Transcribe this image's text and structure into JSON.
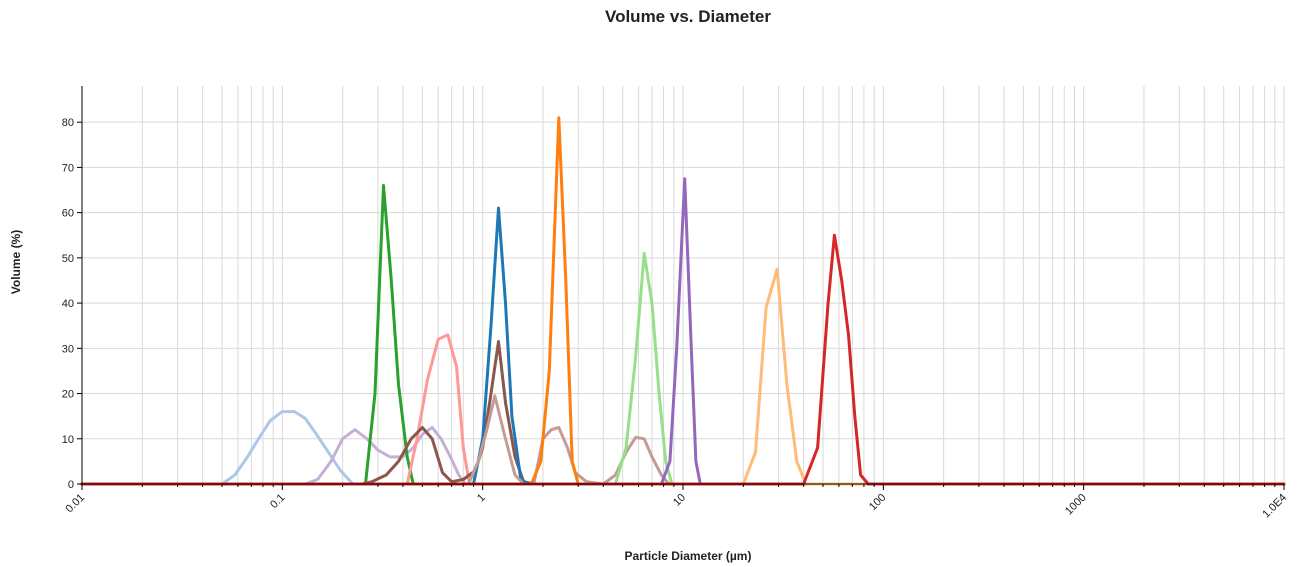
{
  "chart_data": {
    "type": "line",
    "title": "Volume vs. Diameter",
    "xlabel": "Particle Diameter (µm)",
    "ylabel": "Volume (%)",
    "x_scale": "log",
    "xlim": [
      0.01,
      10000
    ],
    "ylim": [
      0,
      88
    ],
    "x_tick_values": [
      0.01,
      0.1,
      1,
      10,
      100,
      1000,
      10000
    ],
    "x_tick_labels": [
      "0.01",
      "0.1",
      "1",
      "10",
      "100",
      "1000",
      "1.0E4"
    ],
    "y_tick_values": [
      0,
      10,
      20,
      30,
      40,
      50,
      60,
      70,
      80
    ],
    "y_tick_labels": [
      "0",
      "10",
      "20",
      "30",
      "40",
      "50",
      "60",
      "70",
      "80"
    ],
    "grid": true,
    "legend": "none",
    "series": [
      {
        "color": "#aec7e8",
        "points": [
          [
            0.01,
            0
          ],
          [
            0.05,
            0
          ],
          [
            0.058,
            2
          ],
          [
            0.067,
            6
          ],
          [
            0.076,
            10
          ],
          [
            0.087,
            14
          ],
          [
            0.1,
            16
          ],
          [
            0.115,
            16
          ],
          [
            0.13,
            14.5
          ],
          [
            0.148,
            11
          ],
          [
            0.17,
            7
          ],
          [
            0.195,
            3
          ],
          [
            0.225,
            0
          ],
          [
            10000,
            0
          ]
        ]
      },
      {
        "color": "#c5b0d5",
        "points": [
          [
            0.01,
            0
          ],
          [
            0.13,
            0
          ],
          [
            0.15,
            1
          ],
          [
            0.175,
            5
          ],
          [
            0.2,
            10
          ],
          [
            0.23,
            12
          ],
          [
            0.265,
            10
          ],
          [
            0.3,
            7.5
          ],
          [
            0.345,
            6
          ],
          [
            0.4,
            6
          ],
          [
            0.45,
            8
          ],
          [
            0.5,
            11
          ],
          [
            0.56,
            12.5
          ],
          [
            0.62,
            10
          ],
          [
            0.69,
            6
          ],
          [
            0.76,
            2
          ],
          [
            0.82,
            0
          ],
          [
            10000,
            0
          ]
        ]
      },
      {
        "color": "#2ca02c",
        "points": [
          [
            0.01,
            0
          ],
          [
            0.26,
            0
          ],
          [
            0.29,
            20
          ],
          [
            0.32,
            66
          ],
          [
            0.35,
            45
          ],
          [
            0.38,
            22
          ],
          [
            0.42,
            6
          ],
          [
            0.45,
            0
          ],
          [
            10000,
            0
          ]
        ]
      },
      {
        "color": "#ff9896",
        "points": [
          [
            0.01,
            0
          ],
          [
            0.42,
            0
          ],
          [
            0.47,
            10
          ],
          [
            0.53,
            23
          ],
          [
            0.6,
            32
          ],
          [
            0.67,
            33
          ],
          [
            0.74,
            26
          ],
          [
            0.8,
            8
          ],
          [
            0.86,
            0
          ],
          [
            10000,
            0
          ]
        ]
      },
      {
        "color": "#8c564b",
        "points": [
          [
            0.01,
            0
          ],
          [
            0.25,
            0
          ],
          [
            0.28,
            0.5
          ],
          [
            0.33,
            2
          ],
          [
            0.38,
            5
          ],
          [
            0.44,
            10
          ],
          [
            0.5,
            12.5
          ],
          [
            0.56,
            10
          ],
          [
            0.63,
            2.5
          ],
          [
            0.7,
            0.5
          ],
          [
            0.8,
            1
          ],
          [
            0.92,
            3
          ],
          [
            1.0,
            8
          ],
          [
            1.1,
            20
          ],
          [
            1.2,
            31.5
          ],
          [
            1.3,
            18
          ],
          [
            1.45,
            6
          ],
          [
            1.6,
            0.5
          ],
          [
            1.8,
            0
          ],
          [
            10000,
            0
          ]
        ]
      },
      {
        "color": "#1f77b4",
        "points": [
          [
            0.01,
            0
          ],
          [
            0.9,
            0
          ],
          [
            1.0,
            10
          ],
          [
            1.1,
            35
          ],
          [
            1.2,
            61
          ],
          [
            1.3,
            40
          ],
          [
            1.4,
            15
          ],
          [
            1.55,
            1
          ],
          [
            1.7,
            0
          ],
          [
            10000,
            0
          ]
        ]
      },
      {
        "color": "#c49c94",
        "points": [
          [
            0.01,
            0
          ],
          [
            0.85,
            0
          ],
          [
            0.95,
            5
          ],
          [
            1.05,
            12
          ],
          [
            1.15,
            19.5
          ],
          [
            1.3,
            10
          ],
          [
            1.45,
            2
          ],
          [
            1.6,
            0
          ],
          [
            1.8,
            0
          ],
          [
            2.0,
            10
          ],
          [
            2.2,
            12
          ],
          [
            2.4,
            12.5
          ],
          [
            2.65,
            8
          ],
          [
            2.9,
            2.5
          ],
          [
            3.3,
            0.5
          ],
          [
            4.0,
            0
          ],
          [
            4.6,
            2
          ],
          [
            5.2,
            7
          ],
          [
            5.8,
            10.3
          ],
          [
            6.4,
            10
          ],
          [
            7.0,
            6
          ],
          [
            7.8,
            2
          ],
          [
            8.5,
            0
          ],
          [
            10000,
            0
          ]
        ]
      },
      {
        "color": "#ff7f0e",
        "points": [
          [
            0.01,
            0
          ],
          [
            1.75,
            0
          ],
          [
            1.95,
            5
          ],
          [
            2.15,
            25
          ],
          [
            2.4,
            81
          ],
          [
            2.6,
            45
          ],
          [
            2.8,
            5
          ],
          [
            3.0,
            0
          ],
          [
            10000,
            0
          ]
        ]
      },
      {
        "color": "#98df8a",
        "points": [
          [
            0.01,
            0
          ],
          [
            4.6,
            0
          ],
          [
            5.2,
            8
          ],
          [
            5.8,
            28
          ],
          [
            6.4,
            51
          ],
          [
            7.0,
            40
          ],
          [
            7.6,
            20
          ],
          [
            8.2,
            5
          ],
          [
            8.8,
            0
          ],
          [
            10000,
            0
          ]
        ]
      },
      {
        "color": "#9467bd",
        "points": [
          [
            0.01,
            0
          ],
          [
            7.8,
            0
          ],
          [
            8.6,
            5
          ],
          [
            9.3,
            30
          ],
          [
            10.2,
            67.5
          ],
          [
            11.0,
            30
          ],
          [
            11.6,
            5
          ],
          [
            12.2,
            0
          ],
          [
            10000,
            0
          ]
        ]
      },
      {
        "color": "#ffbb78",
        "points": [
          [
            0.01,
            0
          ],
          [
            20,
            0
          ],
          [
            23,
            7
          ],
          [
            26,
            39
          ],
          [
            29.5,
            47.5
          ],
          [
            33,
            22
          ],
          [
            37,
            5
          ],
          [
            41,
            0
          ],
          [
            10000,
            0
          ]
        ]
      },
      {
        "color": "#d62728",
        "points": [
          [
            0.01,
            0
          ],
          [
            40,
            0
          ],
          [
            47,
            8
          ],
          [
            53,
            40
          ],
          [
            57,
            55
          ],
          [
            62,
            45
          ],
          [
            67,
            33
          ],
          [
            72,
            15
          ],
          [
            77,
            2
          ],
          [
            84,
            0
          ],
          [
            10000,
            0
          ]
        ]
      }
    ]
  }
}
